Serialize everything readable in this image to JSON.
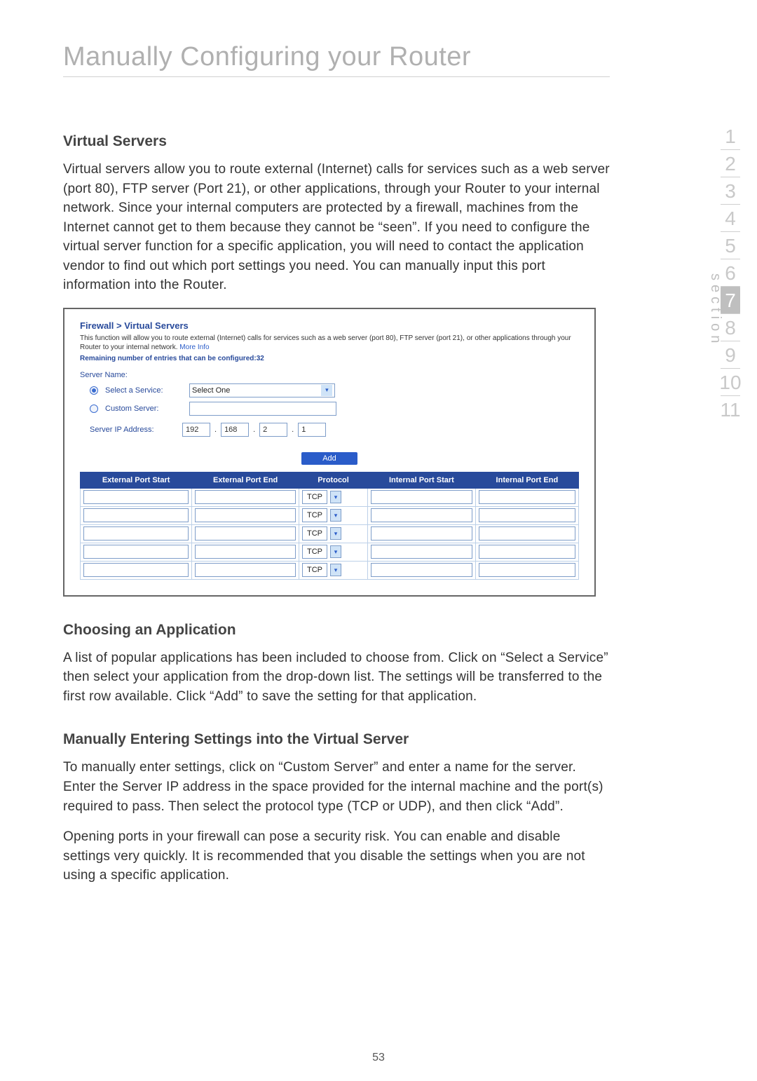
{
  "page": {
    "title": "Manually Configuring your Router",
    "number": "53"
  },
  "sidenav": {
    "label": "section",
    "items": [
      "1",
      "2",
      "3",
      "4",
      "5",
      "6",
      "7",
      "8",
      "9",
      "10",
      "11"
    ],
    "active_index": 6,
    "text_color": "#c9c9c9",
    "active_bg": "#bfbfbf",
    "active_fg": "#ffffff",
    "separator_color": "#cfcfcf"
  },
  "sections": {
    "virtual_servers": {
      "heading": "Virtual Servers",
      "body": "Virtual servers allow you to route external (Internet) calls for services such as a web server (port 80), FTP server (Port 21), or other applications, through your Router to your internal network. Since your internal computers are protected by a firewall, machines from the Internet cannot get to them because they cannot be “seen”. If you need to configure the virtual server function for a specific application, you will need to contact the application vendor to find out which port settings you need. You can manually input this port information into the Router."
    },
    "choosing": {
      "heading": "Choosing an Application",
      "body": "A list of popular applications has been included to choose from. Click on “Select a Service” then select your application from the drop-down list. The settings will be transferred to the first row available. Click “Add” to save the setting for that application."
    },
    "manual_entry": {
      "heading": "Manually Entering Settings into the Virtual Server",
      "body1": "To manually enter settings, click on “Custom Server” and enter a name for the server. Enter the Server IP address in the space provided for the internal machine and the port(s) required to pass. Then select the protocol type (TCP or UDP), and then click “Add”.",
      "body2": "Opening ports in your firewall can pose a security risk. You can enable and disable settings very quickly. It is recommended that you disable the settings when you are not using a specific application."
    }
  },
  "router_ui": {
    "breadcrumb": "Firewall > Virtual Servers",
    "description": "This function will allow you to route external (Internet) calls for services such as a web server (port 80), FTP server (port 21), or other applications through your Router to your internal network.",
    "more_info": "More Info",
    "remaining": "Remaining number of entries that can be configured:32",
    "server_name_label": "Server Name:",
    "select_service_label": "Select a Service:",
    "select_service_value": "Select One",
    "custom_server_label": "Custom Server:",
    "server_ip_label": "Server IP Address:",
    "ip_octets": [
      "192",
      "168",
      "2",
      "1"
    ],
    "add_label": "Add",
    "radio_selected": "select_service",
    "table": {
      "columns": [
        "External Port Start",
        "External Port End",
        "Protocol",
        "Internal Port Start",
        "Internal Port End"
      ],
      "row_count": 5,
      "protocol_default": "TCP",
      "header_bg": "#284a9b",
      "header_fg": "#ffffff",
      "cell_border": "#bcd0e8",
      "input_border": "#7e9dc9",
      "dropdown_bg": "#cfe3f7"
    },
    "colors": {
      "brand_blue": "#284a9b",
      "link_blue": "#2a5cc9",
      "panel_border": "#666666"
    }
  }
}
